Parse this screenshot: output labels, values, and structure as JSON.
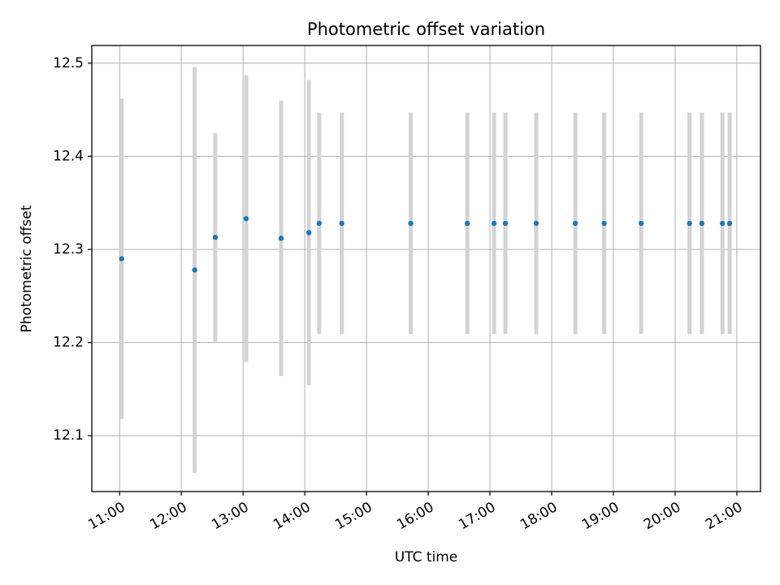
{
  "chart_data": {
    "type": "scatter",
    "title": "Photometric offset variation",
    "xlabel": "UTC time",
    "ylabel": "Photometric offset",
    "x_ticks": [
      "11:00",
      "12:00",
      "13:00",
      "14:00",
      "15:00",
      "16:00",
      "17:00",
      "18:00",
      "19:00",
      "20:00",
      "21:00"
    ],
    "y_ticks": [
      "12.1",
      "12.2",
      "12.3",
      "12.4",
      "12.5"
    ],
    "xlim": [
      "10:33",
      "21:23"
    ],
    "ylim": [
      12.04,
      12.519
    ],
    "grid": true,
    "errorbar_color": "#d3d3d3",
    "point_color": "#1f77b4",
    "series": [
      {
        "points": [
          {
            "time": "11:02",
            "y": 12.29,
            "err": 0.172
          },
          {
            "time": "12:13",
            "y": 12.278,
            "err": 0.218
          },
          {
            "time": "12:33",
            "y": 12.313,
            "err": 0.112
          },
          {
            "time": "13:03",
            "y": 12.333,
            "err": 0.154
          },
          {
            "time": "13:37",
            "y": 12.312,
            "err": 0.148
          },
          {
            "time": "14:04",
            "y": 12.318,
            "err": 0.164
          },
          {
            "time": "14:14",
            "y": 12.328,
            "err": 0.119
          },
          {
            "time": "14:36",
            "y": 12.328,
            "err": 0.119
          },
          {
            "time": "15:43",
            "y": 12.328,
            "err": 0.119
          },
          {
            "time": "16:38",
            "y": 12.328,
            "err": 0.119
          },
          {
            "time": "17:04",
            "y": 12.328,
            "err": 0.119
          },
          {
            "time": "17:15",
            "y": 12.328,
            "err": 0.119
          },
          {
            "time": "17:45",
            "y": 12.328,
            "err": 0.119
          },
          {
            "time": "18:23",
            "y": 12.328,
            "err": 0.119
          },
          {
            "time": "18:51",
            "y": 12.328,
            "err": 0.119
          },
          {
            "time": "19:27",
            "y": 12.328,
            "err": 0.119
          },
          {
            "time": "20:14",
            "y": 12.328,
            "err": 0.119
          },
          {
            "time": "20:26",
            "y": 12.328,
            "err": 0.119
          },
          {
            "time": "20:46",
            "y": 12.328,
            "err": 0.119
          },
          {
            "time": "20:53",
            "y": 12.328,
            "err": 0.119
          }
        ]
      }
    ]
  }
}
